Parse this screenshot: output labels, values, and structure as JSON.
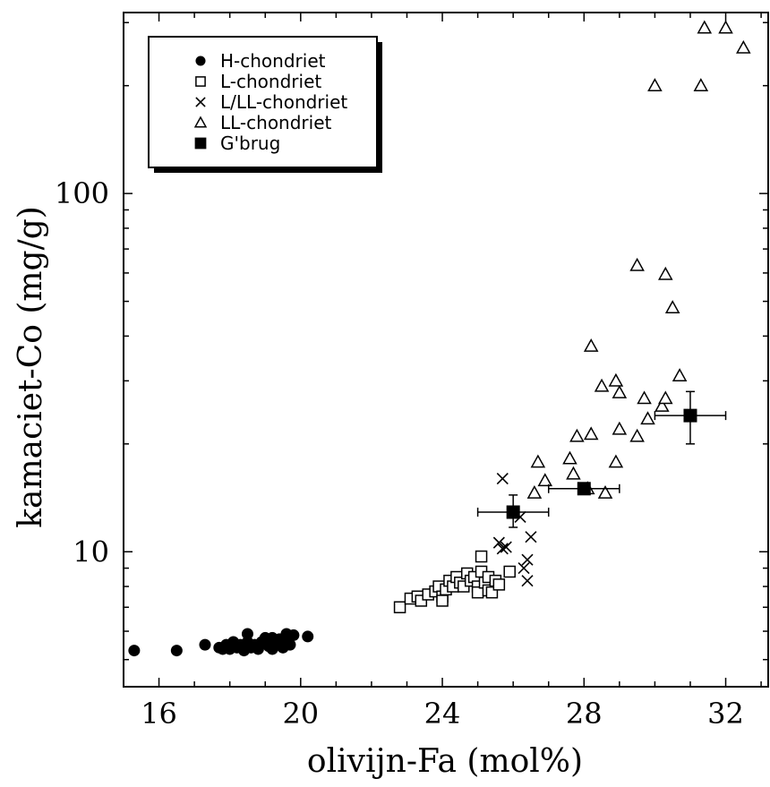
{
  "chart_data": {
    "type": "scatter",
    "xlabel": "olivijn-Fa (mol%)",
    "ylabel": "kamaciet-Co (mg/g)",
    "xlim": [
      15,
      33.2
    ],
    "ylim": [
      4.2,
      320
    ],
    "yscale": "log",
    "x_ticks": [
      "16",
      "20",
      "24",
      "28",
      "32"
    ],
    "y_ticks": [
      "10",
      "100"
    ],
    "legend_position": "top-left",
    "series": [
      {
        "name": "H-chondriet",
        "marker": "filled-circle",
        "points": [
          [
            15.3,
            5.3
          ],
          [
            16.5,
            5.3
          ],
          [
            17.3,
            5.5
          ],
          [
            17.7,
            5.4
          ],
          [
            17.8,
            5.35
          ],
          [
            17.9,
            5.5
          ],
          [
            18.0,
            5.35
          ],
          [
            18.1,
            5.6
          ],
          [
            18.2,
            5.4
          ],
          [
            18.3,
            5.5
          ],
          [
            18.4,
            5.3
          ],
          [
            18.5,
            5.9
          ],
          [
            18.5,
            5.6
          ],
          [
            18.6,
            5.4
          ],
          [
            18.7,
            5.5
          ],
          [
            18.8,
            5.35
          ],
          [
            18.9,
            5.6
          ],
          [
            19.0,
            5.75
          ],
          [
            19.1,
            5.45
          ],
          [
            19.2,
            5.35
          ],
          [
            19.2,
            5.75
          ],
          [
            19.3,
            5.55
          ],
          [
            19.4,
            5.7
          ],
          [
            19.5,
            5.4
          ],
          [
            19.6,
            5.9
          ],
          [
            19.6,
            5.65
          ],
          [
            19.7,
            5.5
          ],
          [
            19.8,
            5.85
          ],
          [
            20.2,
            5.8
          ]
        ]
      },
      {
        "name": "L-chondriet",
        "marker": "open-square",
        "points": [
          [
            22.8,
            7.0
          ],
          [
            23.1,
            7.4
          ],
          [
            23.3,
            7.5
          ],
          [
            23.4,
            7.3
          ],
          [
            23.6,
            7.6
          ],
          [
            23.8,
            7.75
          ],
          [
            23.9,
            8.0
          ],
          [
            24.0,
            7.5
          ],
          [
            24.0,
            7.3
          ],
          [
            24.1,
            7.85
          ],
          [
            24.2,
            8.3
          ],
          [
            24.3,
            8.0
          ],
          [
            24.4,
            8.5
          ],
          [
            24.5,
            8.2
          ],
          [
            24.6,
            8.0
          ],
          [
            24.7,
            8.7
          ],
          [
            24.8,
            8.3
          ],
          [
            24.9,
            8.5
          ],
          [
            25.0,
            8.0
          ],
          [
            25.0,
            7.7
          ],
          [
            25.1,
            8.8
          ],
          [
            25.1,
            9.7
          ],
          [
            25.2,
            8.2
          ],
          [
            25.3,
            8.5
          ],
          [
            25.3,
            7.8
          ],
          [
            25.4,
            7.7
          ],
          [
            25.5,
            8.3
          ],
          [
            25.6,
            8.1
          ],
          [
            25.9,
            8.8
          ]
        ]
      },
      {
        "name": "L/LL-chondriet",
        "marker": "cross",
        "points": [
          [
            25.6,
            10.6
          ],
          [
            25.7,
            16.0
          ],
          [
            25.7,
            10.2
          ],
          [
            25.8,
            10.3
          ],
          [
            26.2,
            12.5
          ],
          [
            26.3,
            9.0
          ],
          [
            26.4,
            9.5
          ],
          [
            26.4,
            8.3
          ],
          [
            26.5,
            11.0
          ]
        ]
      },
      {
        "name": "LL-chondriet",
        "marker": "open-triangle",
        "points": [
          [
            26.6,
            14.6
          ],
          [
            26.7,
            17.8
          ],
          [
            26.9,
            15.8
          ],
          [
            27.6,
            18.2
          ],
          [
            27.7,
            16.5
          ],
          [
            27.8,
            21.0
          ],
          [
            28.1,
            15.0
          ],
          [
            28.2,
            21.3
          ],
          [
            28.2,
            37.5
          ],
          [
            28.5,
            29.0
          ],
          [
            28.6,
            14.6
          ],
          [
            28.9,
            17.8
          ],
          [
            28.9,
            30.0
          ],
          [
            29.0,
            22.0
          ],
          [
            29.0,
            27.8
          ],
          [
            29.5,
            21.0
          ],
          [
            29.5,
            63.0
          ],
          [
            29.7,
            26.8
          ],
          [
            29.8,
            23.5
          ],
          [
            30.0,
            200.0
          ],
          [
            30.2,
            25.5
          ],
          [
            30.3,
            59.5
          ],
          [
            30.3,
            26.8
          ],
          [
            30.5,
            48.0
          ],
          [
            30.7,
            31.0
          ],
          [
            31.3,
            200.0
          ],
          [
            31.4,
            290.0
          ],
          [
            32.0,
            290.0
          ],
          [
            32.5,
            255.0
          ]
        ]
      },
      {
        "name": "G'brug",
        "marker": "filled-square",
        "points": [
          {
            "x": 26.0,
            "y": 12.9,
            "xerr": [
              25.0,
              27.0
            ],
            "yerr": [
              11.7,
              14.4
            ]
          },
          {
            "x": 28.0,
            "y": 15.0,
            "xerr": [
              27.0,
              29.0
            ],
            "yerr": [
              14.5,
              15.5
            ]
          },
          {
            "x": 31.0,
            "y": 24.0,
            "xerr": [
              30.0,
              32.0
            ],
            "yerr": [
              20.0,
              28.0
            ]
          }
        ]
      }
    ]
  }
}
